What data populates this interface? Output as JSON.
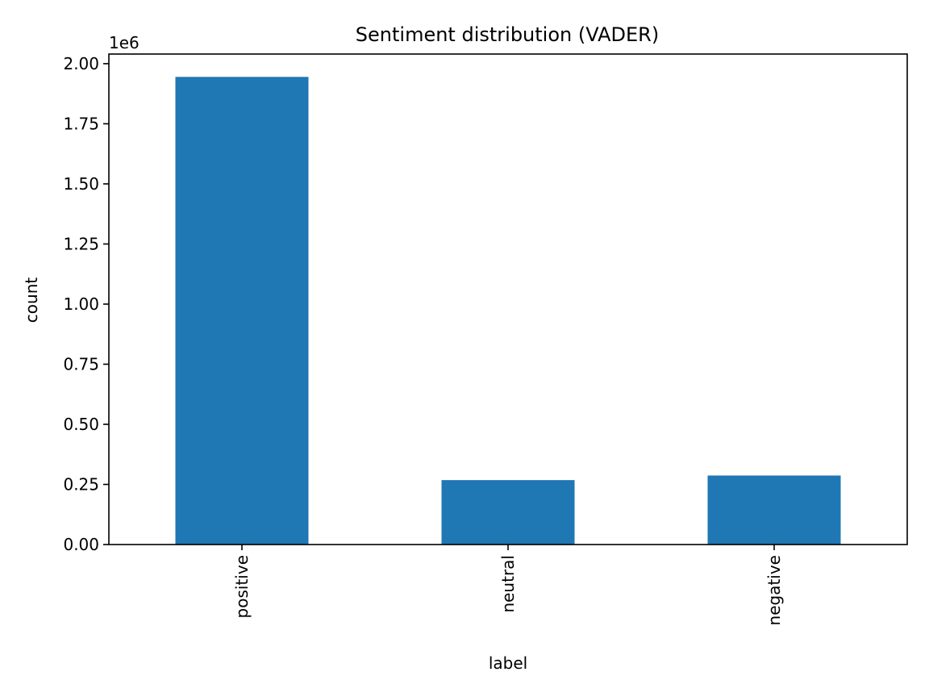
{
  "chart_data": {
    "type": "bar",
    "title": "Sentiment distribution (VADER)",
    "xlabel": "label",
    "ylabel": "count",
    "categories": [
      "positive",
      "neutral",
      "negative"
    ],
    "values": [
      1945000,
      268000,
      287000
    ],
    "ylim": [
      0,
      2040000
    ],
    "yticks": [
      0,
      250000,
      500000,
      750000,
      1000000,
      1250000,
      1500000,
      1750000,
      2000000
    ],
    "ytick_labels": [
      "0.00",
      "0.25",
      "0.50",
      "0.75",
      "1.00",
      "1.25",
      "1.50",
      "1.75",
      "2.00"
    ],
    "offset_text": "1e6",
    "bar_color": "#1f77b4",
    "grid": false,
    "legend": false
  }
}
